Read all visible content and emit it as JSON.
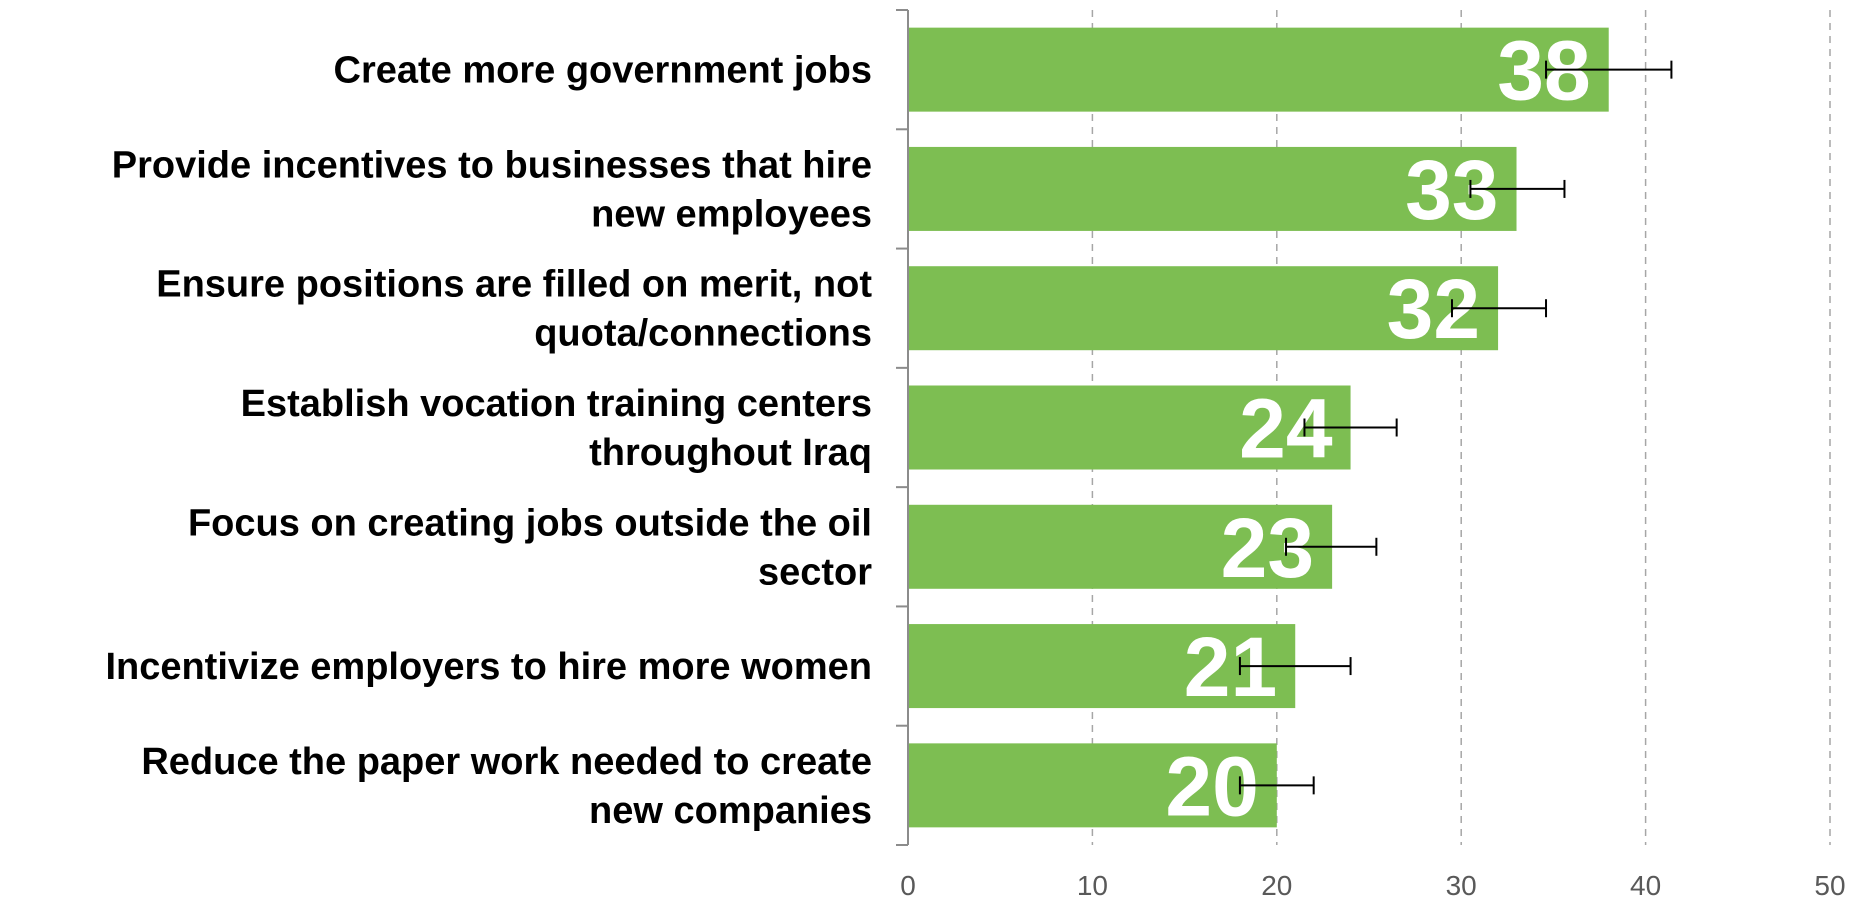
{
  "chart_data": {
    "type": "bar",
    "orientation": "horizontal",
    "categories": [
      [
        "Create more government jobs"
      ],
      [
        "Provide incentives to businesses that hire",
        "new employees"
      ],
      [
        "Ensure positions are filled on merit, not",
        "quota/connections"
      ],
      [
        "Establish vocation training centers",
        "throughout Iraq"
      ],
      [
        "Focus on creating jobs outside the oil",
        "sector"
      ],
      [
        "Incentivize employers to hire more women"
      ],
      [
        "Reduce the paper work needed to create",
        "new companies"
      ]
    ],
    "values": [
      38,
      33,
      32,
      24,
      23,
      21,
      20
    ],
    "data_labels": [
      "38",
      "33",
      "32",
      "24",
      "23",
      "21",
      "20"
    ],
    "error_bars": [
      [
        34.6,
        41.4
      ],
      [
        30.5,
        35.6
      ],
      [
        29.5,
        34.6
      ],
      [
        21.5,
        26.5
      ],
      [
        20.5,
        25.4
      ],
      [
        18.0,
        24.0
      ],
      [
        18.0,
        22.0
      ]
    ],
    "xlim": [
      0,
      50
    ],
    "xticks": [
      "0",
      "10",
      "20",
      "30",
      "40",
      "50"
    ],
    "grid": "vertical dashed",
    "bar_color": "#7DBE52",
    "title": "",
    "xlabel": "",
    "ylabel": ""
  }
}
